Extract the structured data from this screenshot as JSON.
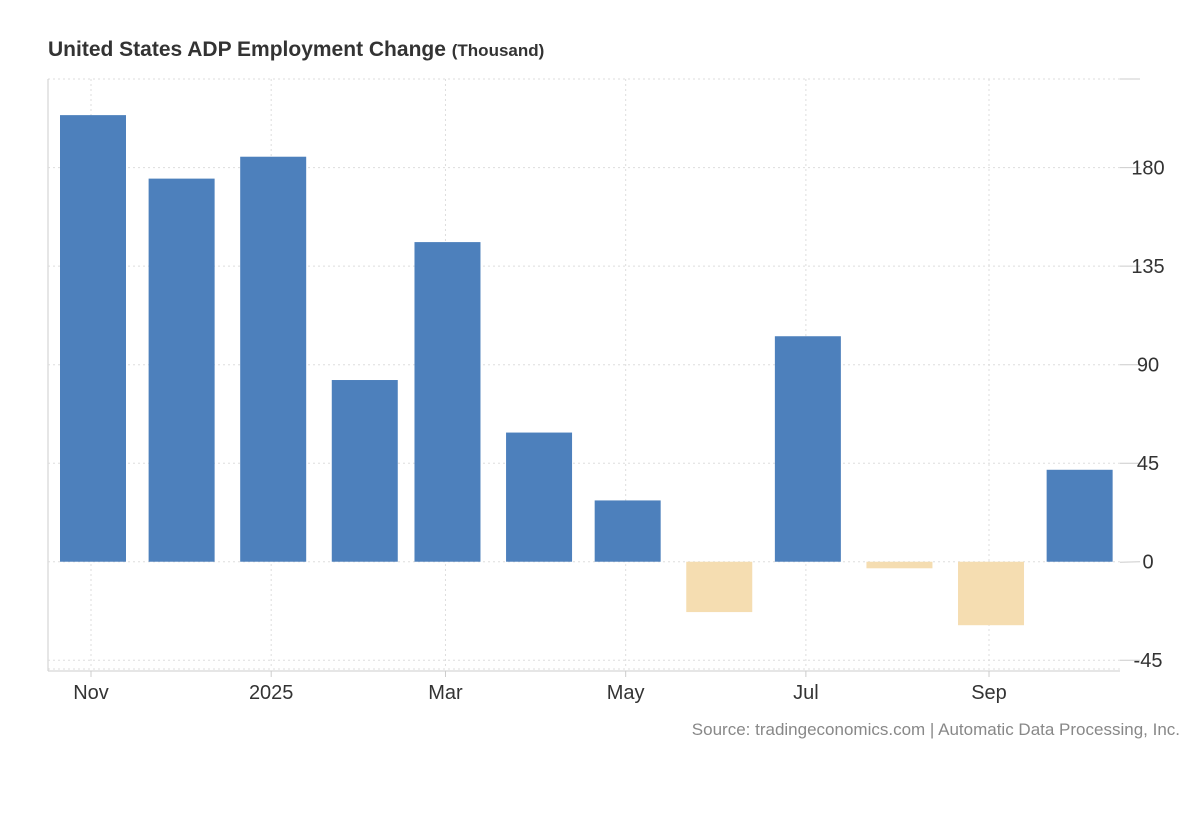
{
  "chart_data": {
    "type": "bar",
    "title": "United States ADP Employment Change",
    "unit": "(Thousand)",
    "source": "Source: tradingeconomics.com | Automatic Data Processing, Inc.",
    "x": [
      "2024-11",
      "2024-12",
      "2025-01",
      "2025-02",
      "2025-03",
      "2025-04",
      "2025-05",
      "2025-06",
      "2025-07",
      "2025-08",
      "2025-09",
      "2025-10"
    ],
    "values": [
      204,
      175,
      185,
      83,
      146,
      59,
      28,
      -23,
      103,
      -3,
      -29,
      42
    ],
    "x_ticks": [
      {
        "date": "2024-11",
        "label": "Nov"
      },
      {
        "date": "2025-01",
        "label": "2025"
      },
      {
        "date": "2025-03",
        "label": "Mar"
      },
      {
        "date": "2025-05",
        "label": "May"
      },
      {
        "date": "2025-07",
        "label": "Jul"
      },
      {
        "date": "2025-09",
        "label": "Sep"
      }
    ],
    "y_ticks": [
      -45,
      0,
      45,
      90,
      135,
      180
    ],
    "ylim": [
      -49,
      220.5
    ],
    "y_axis_side": "right",
    "grid": true,
    "colors": {
      "positive": "#4d80bc",
      "negative": "#f5ddb1"
    }
  }
}
